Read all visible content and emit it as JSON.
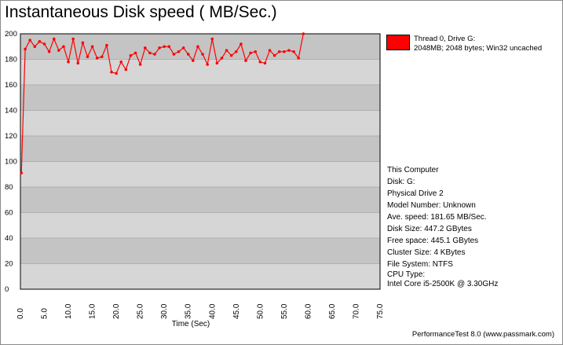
{
  "window": {
    "title": "Instantaneous Disk speed ( MB/Sec.)",
    "footer": "PerformanceTest 8.0 (www.passmark.com)"
  },
  "legend": {
    "line1": "Thread 0, Drive G:",
    "line2": "2048MB; 2048 bytes; Win32 uncached",
    "color": "#ff0000"
  },
  "info": {
    "computer": "This Computer",
    "disk": "Disk: G:",
    "physical": "Physical Drive 2",
    "model": "Model Number: Unknown",
    "avg_speed": "Ave. speed: 181.65 MB/Sec.",
    "disk_size": "Disk Size: 447.2 GBytes",
    "free_space": "Free space: 445.1 GBytes",
    "cluster": "Cluster Size: 4 KBytes",
    "fs": "File System: NTFS",
    "cpu_label": "CPU Type:",
    "cpu_value": "Intel Core i5-2500K @ 3.30GHz"
  },
  "chart_data": {
    "type": "line",
    "title": "Instantaneous Disk speed ( MB/Sec.)",
    "xlabel": "Time (Sec)",
    "ylabel": "",
    "xlim": [
      0,
      75
    ],
    "ylim": [
      0,
      200
    ],
    "x_ticks": [
      "0.0",
      "5.0",
      "10.0",
      "15.0",
      "20.0",
      "25.0",
      "30.0",
      "35.0",
      "40.0",
      "45.0",
      "50.0",
      "55.0",
      "60.0",
      "65.0",
      "70.0",
      "75.0"
    ],
    "y_ticks": [
      "0",
      "20",
      "40",
      "60",
      "80",
      "100",
      "120",
      "140",
      "160",
      "180",
      "200"
    ],
    "bands": [
      "#d6d6d6",
      "#c4c4c4"
    ],
    "grid": true,
    "series": [
      {
        "name": "Thread 0, Drive G:",
        "color": "#ff0000",
        "points": [
          [
            0.2,
            91
          ],
          [
            1,
            188
          ],
          [
            2,
            195
          ],
          [
            3,
            190
          ],
          [
            4,
            194
          ],
          [
            5,
            192
          ],
          [
            6,
            186
          ],
          [
            7,
            196
          ],
          [
            8,
            187
          ],
          [
            9,
            190
          ],
          [
            10,
            178
          ],
          [
            11,
            196
          ],
          [
            12,
            177
          ],
          [
            13,
            193
          ],
          [
            14,
            182
          ],
          [
            15,
            190
          ],
          [
            16,
            181
          ],
          [
            17,
            182
          ],
          [
            18,
            191
          ],
          [
            19,
            170
          ],
          [
            20,
            169
          ],
          [
            21,
            178
          ],
          [
            22,
            172
          ],
          [
            23,
            183
          ],
          [
            24,
            185
          ],
          [
            25,
            176
          ],
          [
            26,
            189
          ],
          [
            27,
            185
          ],
          [
            28,
            184
          ],
          [
            29,
            189
          ],
          [
            30,
            190
          ],
          [
            31,
            190
          ],
          [
            32,
            184
          ],
          [
            33,
            186
          ],
          [
            34,
            189
          ],
          [
            35,
            184
          ],
          [
            36,
            179
          ],
          [
            37,
            190
          ],
          [
            38,
            184
          ],
          [
            39,
            176
          ],
          [
            40,
            196
          ],
          [
            41,
            177
          ],
          [
            42,
            181
          ],
          [
            43,
            187
          ],
          [
            44,
            183
          ],
          [
            45,
            186
          ],
          [
            46,
            192
          ],
          [
            47,
            179
          ],
          [
            48,
            185
          ],
          [
            49,
            186
          ],
          [
            50,
            178
          ],
          [
            51,
            177
          ],
          [
            52,
            187
          ],
          [
            53,
            183
          ],
          [
            54,
            186
          ],
          [
            55,
            186
          ],
          [
            56,
            187
          ],
          [
            57,
            186
          ],
          [
            58,
            181
          ],
          [
            59,
            200
          ]
        ]
      }
    ]
  }
}
